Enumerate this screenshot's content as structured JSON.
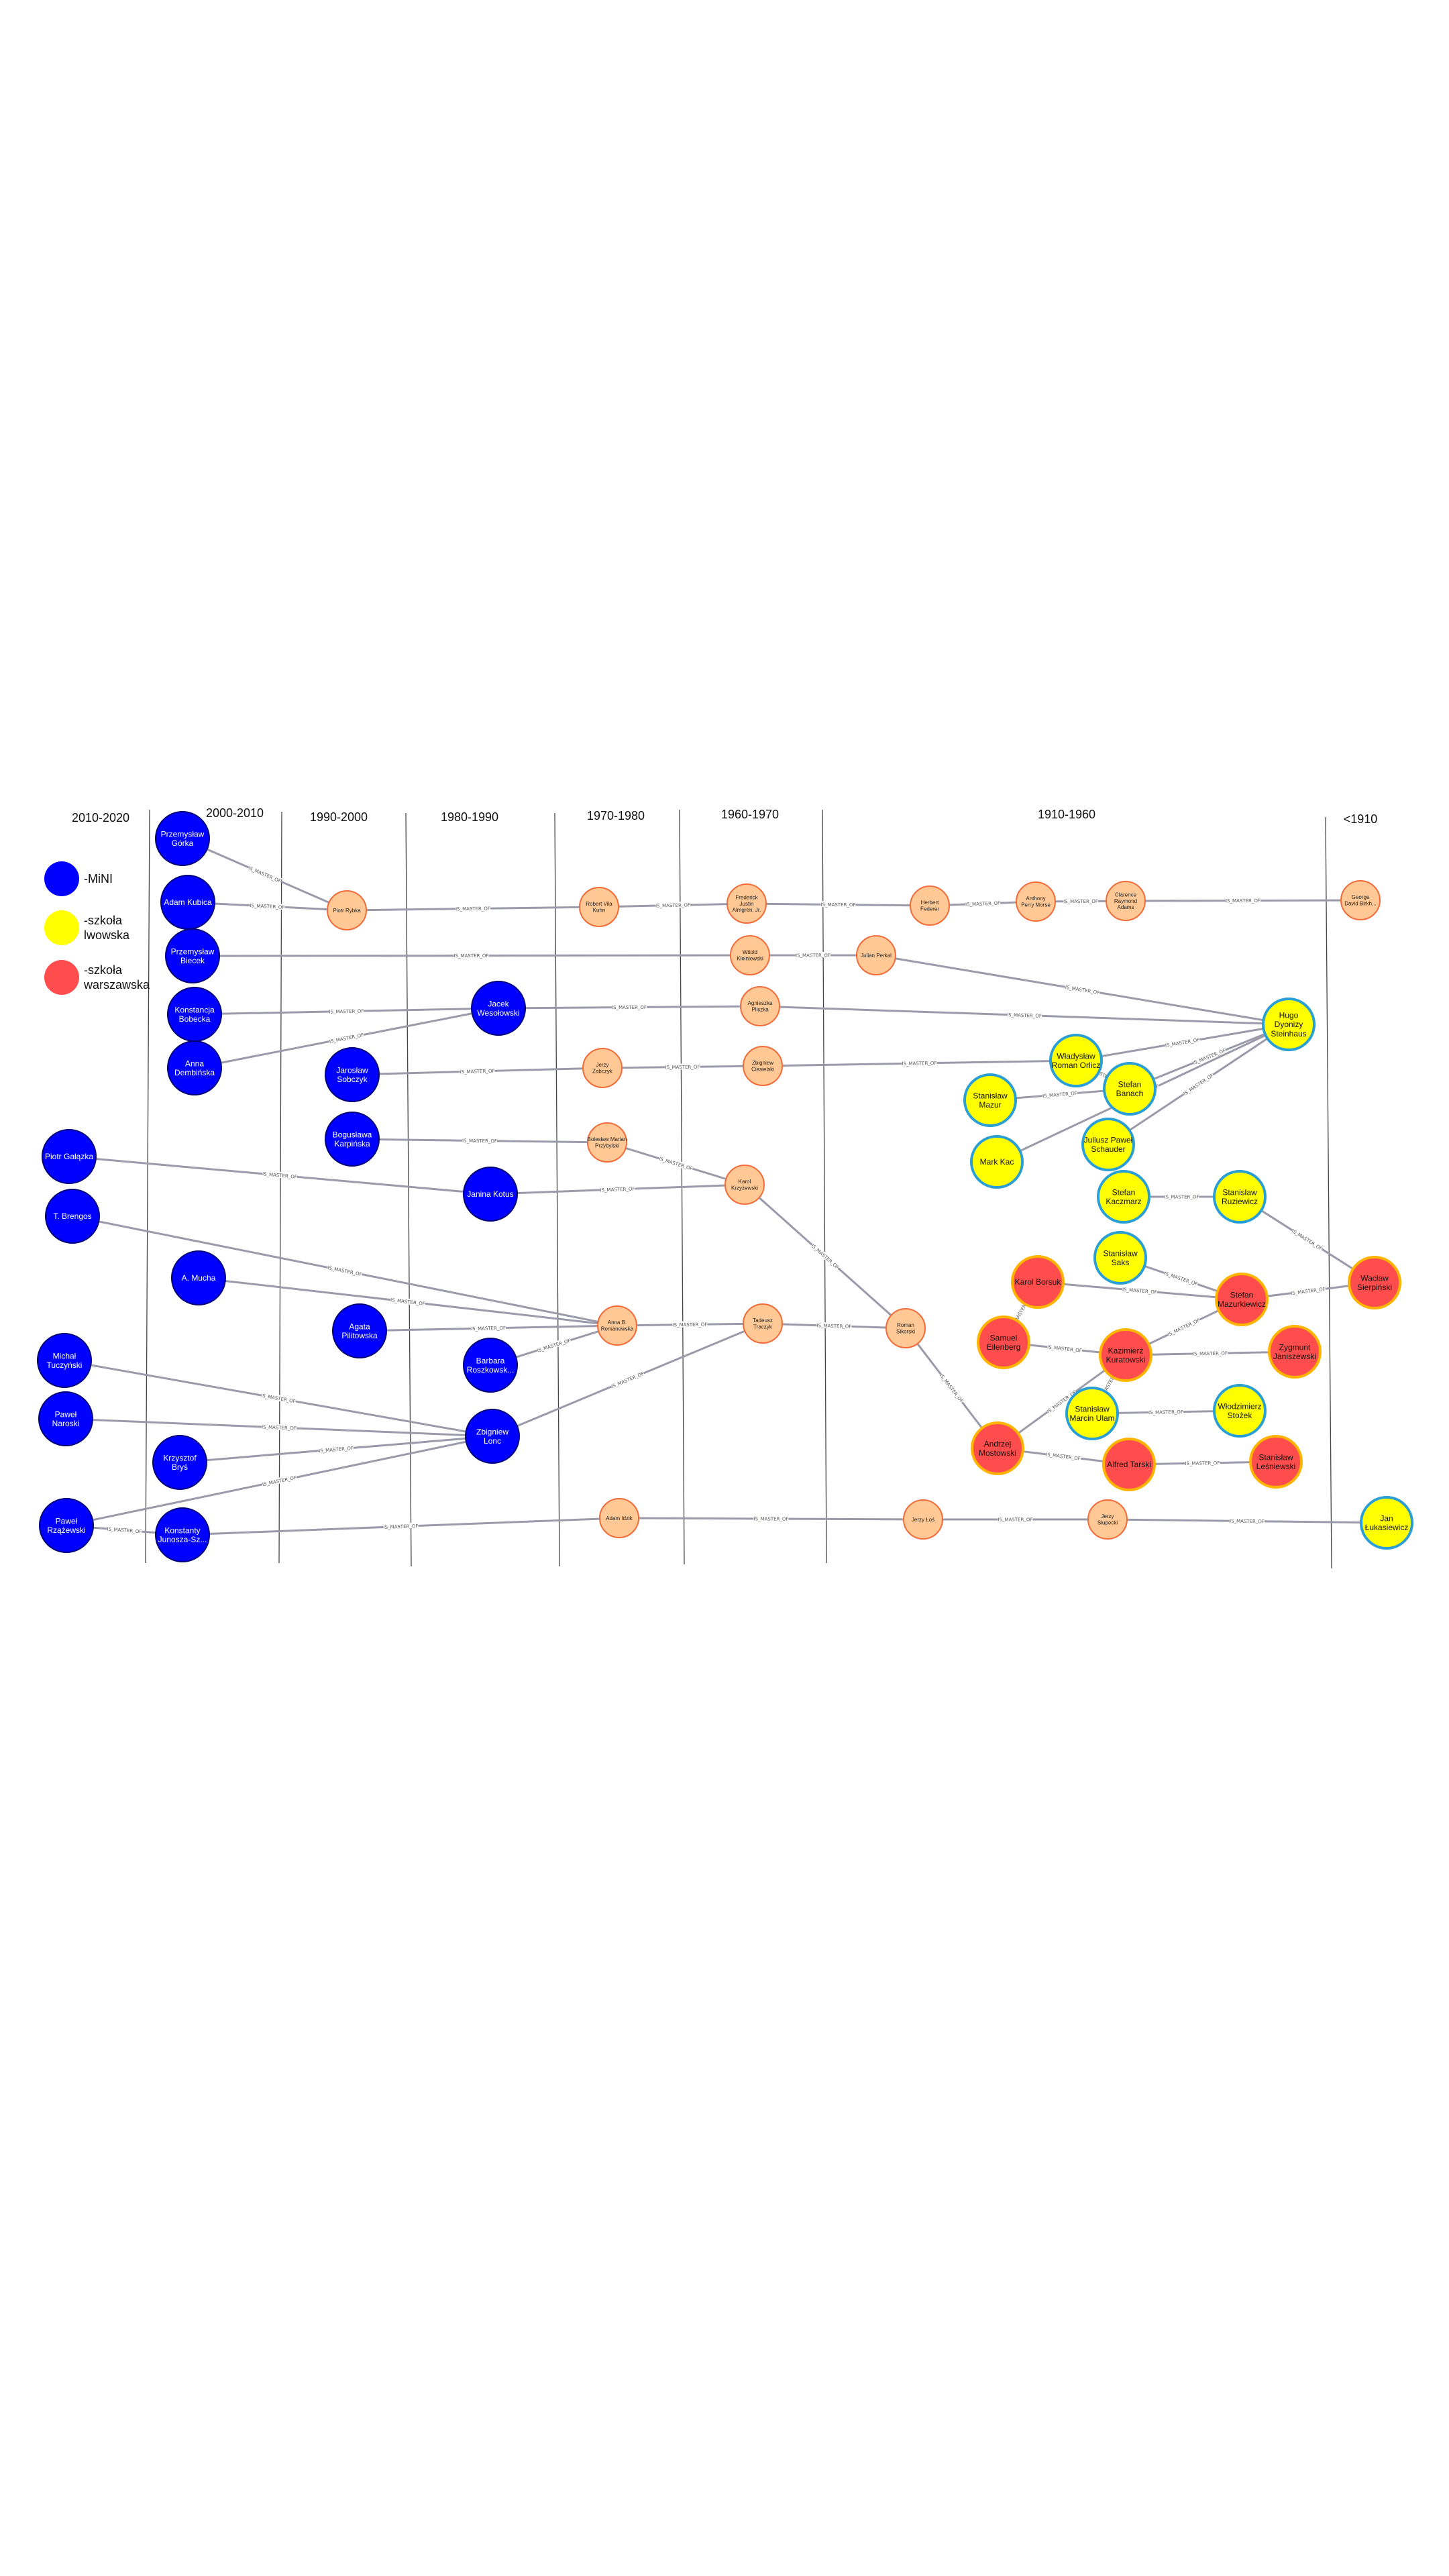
{
  "colors": {
    "mini_fill": "#0000ff",
    "mini_stroke": "#00007a",
    "lwow_fill": "#ffff00",
    "lwow_stroke": "#2a9fd6",
    "warsz_fill": "#ff4d4d",
    "warsz_stroke": "#ffb400",
    "other_fill": "#ffc895",
    "other_stroke": "#f26c3a",
    "edge": "#9a9aaa"
  },
  "eras": [
    "2010-2020",
    "2000-2010",
    "1990-2000",
    "1980-1990",
    "1970-1980",
    "1960-1970",
    "1910-1960",
    "<1910"
  ],
  "legend": [
    {
      "kind": "mini",
      "lines": [
        "-MiNI"
      ]
    },
    {
      "kind": "lwow",
      "lines": [
        "-szkoła",
        "lwowska"
      ]
    },
    {
      "kind": "warsz",
      "lines": [
        "-szkoła",
        "warszawska"
      ]
    }
  ],
  "edge_label": "IS_MASTER_OF",
  "nodes": [
    {
      "id": "gorka",
      "name": [
        "Przemysław",
        "Górka"
      ],
      "kind": "mini"
    },
    {
      "id": "kubica",
      "name": [
        "Adam Kubica"
      ],
      "kind": "mini"
    },
    {
      "id": "biecek",
      "name": [
        "Przemysław",
        "Biecek"
      ],
      "kind": "mini"
    },
    {
      "id": "bobecka",
      "name": [
        "Konstancja",
        "Bobecka"
      ],
      "kind": "mini"
    },
    {
      "id": "dembinska",
      "name": [
        "Anna",
        "Dembińska"
      ],
      "kind": "mini"
    },
    {
      "id": "sobczyk",
      "name": [
        "Jarosław",
        "Sobczyk"
      ],
      "kind": "mini"
    },
    {
      "id": "karpinska",
      "name": [
        "Bogusława",
        "Karpińska"
      ],
      "kind": "mini"
    },
    {
      "id": "galazka",
      "name": [
        "Piotr Gałązka"
      ],
      "kind": "mini"
    },
    {
      "id": "brengos",
      "name": [
        "T. Brengos"
      ],
      "kind": "mini"
    },
    {
      "id": "mucha",
      "name": [
        "A. Mucha"
      ],
      "kind": "mini"
    },
    {
      "id": "pilitowska",
      "name": [
        "Agata",
        "Pilitowska"
      ],
      "kind": "mini"
    },
    {
      "id": "tuczynski",
      "name": [
        "Michał",
        "Tuczyński"
      ],
      "kind": "mini"
    },
    {
      "id": "naroski",
      "name": [
        "Paweł",
        "Naroski"
      ],
      "kind": "mini"
    },
    {
      "id": "brys",
      "name": [
        "Krzysztof",
        "Bryś"
      ],
      "kind": "mini"
    },
    {
      "id": "rzazewski",
      "name": [
        "Paweł",
        "Rzążewski"
      ],
      "kind": "mini"
    },
    {
      "id": "junosza",
      "name": [
        "Konstanty",
        "Junosza-Sz..."
      ],
      "kind": "mini"
    },
    {
      "id": "wesolowski",
      "name": [
        "Jacek",
        "Wesołowski"
      ],
      "kind": "mini"
    },
    {
      "id": "kotus",
      "name": [
        "Janina Kotus"
      ],
      "kind": "mini"
    },
    {
      "id": "roszkowska",
      "name": [
        "Barbara",
        "Roszkowsk..."
      ],
      "kind": "mini"
    },
    {
      "id": "lonc",
      "name": [
        "Zbigniew",
        "Lonc"
      ],
      "kind": "mini"
    },
    {
      "id": "rybka",
      "name": [
        "Piotr Rybka"
      ],
      "kind": "other"
    },
    {
      "id": "kuhn",
      "name": [
        "Robert Vila",
        "Kuhn"
      ],
      "kind": "other"
    },
    {
      "id": "almgren",
      "name": [
        "Frederick",
        "Justin",
        "Almgren, Jr."
      ],
      "kind": "other"
    },
    {
      "id": "federer",
      "name": [
        "Herbert",
        "Federer"
      ],
      "kind": "other"
    },
    {
      "id": "morse",
      "name": [
        "Anthony",
        "Perry Morse"
      ],
      "kind": "other"
    },
    {
      "id": "adams",
      "name": [
        "Clarence",
        "Raymond",
        "Adams"
      ],
      "kind": "other"
    },
    {
      "id": "birkhoff",
      "name": [
        "George",
        "David Birkh..."
      ],
      "kind": "other"
    },
    {
      "id": "kleniewski",
      "name": [
        "Witold",
        "Kleiniewski"
      ],
      "kind": "other"
    },
    {
      "id": "perkal",
      "name": [
        "Julian Perkal"
      ],
      "kind": "other"
    },
    {
      "id": "pliszka",
      "name": [
        "Agnieszka",
        "Pliszka"
      ],
      "kind": "other"
    },
    {
      "id": "zabczyk",
      "name": [
        "Jerzy",
        "Zabczyk"
      ],
      "kind": "other"
    },
    {
      "id": "ciesielski",
      "name": [
        "Zbigniew",
        "Ciesielski"
      ],
      "kind": "other"
    },
    {
      "id": "przybylski",
      "name": [
        "Bolesław Marian",
        "Przybylski"
      ],
      "kind": "other"
    },
    {
      "id": "krzyzewski",
      "name": [
        "Karol",
        "Krzyżewski"
      ],
      "kind": "other"
    },
    {
      "id": "romanowska",
      "name": [
        "Anna B.",
        "Romanowska"
      ],
      "kind": "other"
    },
    {
      "id": "traczyk",
      "name": [
        "Tadeusz",
        "Traczyk"
      ],
      "kind": "other"
    },
    {
      "id": "sikorski",
      "name": [
        "Roman",
        "Sikorski"
      ],
      "kind": "other"
    },
    {
      "id": "idzik",
      "name": [
        "Adam Idzik"
      ],
      "kind": "other"
    },
    {
      "id": "los",
      "name": [
        "Jerzy Łoś"
      ],
      "kind": "other"
    },
    {
      "id": "slupecki",
      "name": [
        "Jerzy",
        "Słupecki"
      ],
      "kind": "other"
    },
    {
      "id": "steinhaus",
      "name": [
        "Hugo",
        "Dyonizy",
        "Steinhaus"
      ],
      "kind": "lwow"
    },
    {
      "id": "orlicz",
      "name": [
        "Władysław",
        "Roman Orlicz"
      ],
      "kind": "lwow"
    },
    {
      "id": "mazur",
      "name": [
        "Stanisław",
        "Mazur"
      ],
      "kind": "lwow"
    },
    {
      "id": "banach",
      "name": [
        "Stefan",
        "Banach"
      ],
      "kind": "lwow"
    },
    {
      "id": "schauder",
      "name": [
        "Juliusz Paweł",
        "Schauder"
      ],
      "kind": "lwow"
    },
    {
      "id": "kac",
      "name": [
        "Mark Kac"
      ],
      "kind": "lwow"
    },
    {
      "id": "kaczmarz",
      "name": [
        "Stefan",
        "Kaczmarz"
      ],
      "kind": "lwow"
    },
    {
      "id": "ruziewicz",
      "name": [
        "Stanisław",
        "Ruziewicz"
      ],
      "kind": "lwow"
    },
    {
      "id": "saks",
      "name": [
        "Stanisław",
        "Saks"
      ],
      "kind": "lwow"
    },
    {
      "id": "ulam",
      "name": [
        "Stanisław",
        "Marcin Ulam"
      ],
      "kind": "lwow"
    },
    {
      "id": "stozek",
      "name": [
        "Włodzimierz",
        "Stożek"
      ],
      "kind": "lwow"
    },
    {
      "id": "lukasiewicz",
      "name": [
        "Jan",
        "Łukasiewicz"
      ],
      "kind": "lwow"
    },
    {
      "id": "borsuk",
      "name": [
        "Karol Borsuk"
      ],
      "kind": "warsz"
    },
    {
      "id": "mazurkiewicz",
      "name": [
        "Stefan",
        "Mazurkiewicz"
      ],
      "kind": "warsz"
    },
    {
      "id": "sierpinski",
      "name": [
        "Wacław",
        "Sierpiński"
      ],
      "kind": "warsz"
    },
    {
      "id": "eilenberg",
      "name": [
        "Samuel",
        "Eilenberg"
      ],
      "kind": "warsz"
    },
    {
      "id": "kuratowski",
      "name": [
        "Kazimierz",
        "Kuratowski"
      ],
      "kind": "warsz"
    },
    {
      "id": "janiszewski",
      "name": [
        "Zygmunt",
        "Janiszewski"
      ],
      "kind": "warsz"
    },
    {
      "id": "mostowski",
      "name": [
        "Andrzej",
        "Mostowski"
      ],
      "kind": "warsz"
    },
    {
      "id": "tarski",
      "name": [
        "Alfred Tarski"
      ],
      "kind": "warsz"
    },
    {
      "id": "lesniewski",
      "name": [
        "Stanisław",
        "Leśniewski"
      ],
      "kind": "warsz"
    }
  ],
  "edges": [
    [
      "gorka",
      "rybka"
    ],
    [
      "kubica",
      "rybka"
    ],
    [
      "rybka",
      "kuhn"
    ],
    [
      "kuhn",
      "almgren"
    ],
    [
      "almgren",
      "federer"
    ],
    [
      "federer",
      "morse"
    ],
    [
      "morse",
      "adams"
    ],
    [
      "adams",
      "birkhoff"
    ],
    [
      "biecek",
      "kleniewski"
    ],
    [
      "kleniewski",
      "perkal"
    ],
    [
      "perkal",
      "steinhaus"
    ],
    [
      "bobecka",
      "wesolowski"
    ],
    [
      "dembinska",
      "wesolowski"
    ],
    [
      "wesolowski",
      "pliszka"
    ],
    [
      "pliszka",
      "steinhaus"
    ],
    [
      "sobczyk",
      "zabczyk"
    ],
    [
      "zabczyk",
      "ciesielski"
    ],
    [
      "ciesielski",
      "orlicz"
    ],
    [
      "orlicz",
      "steinhaus"
    ],
    [
      "orlicz",
      "banach"
    ],
    [
      "mazur",
      "banach"
    ],
    [
      "banach",
      "steinhaus"
    ],
    [
      "schauder",
      "steinhaus"
    ],
    [
      "kac",
      "steinhaus"
    ],
    [
      "karpinska",
      "przybylski"
    ],
    [
      "przybylski",
      "krzyzewski"
    ],
    [
      "galazka",
      "kotus"
    ],
    [
      "kotus",
      "krzyzewski"
    ],
    [
      "krzyzewski",
      "sikorski"
    ],
    [
      "brengos",
      "romanowska"
    ],
    [
      "mucha",
      "romanowska"
    ],
    [
      "pilitowska",
      "romanowska"
    ],
    [
      "roszkowska",
      "romanowska"
    ],
    [
      "romanowska",
      "traczyk"
    ],
    [
      "traczyk",
      "sikorski"
    ],
    [
      "lonc",
      "traczyk"
    ],
    [
      "tuczynski",
      "lonc"
    ],
    [
      "naroski",
      "lonc"
    ],
    [
      "brys",
      "lonc"
    ],
    [
      "rzazewski",
      "lonc"
    ],
    [
      "rzazewski",
      "junosza"
    ],
    [
      "junosza",
      "idzik"
    ],
    [
      "idzik",
      "los"
    ],
    [
      "los",
      "slupecki"
    ],
    [
      "slupecki",
      "lukasiewicz"
    ],
    [
      "sikorski",
      "mostowski"
    ],
    [
      "kaczmarz",
      "ruziewicz"
    ],
    [
      "ruziewicz",
      "sierpinski"
    ],
    [
      "saks",
      "mazurkiewicz"
    ],
    [
      "borsuk",
      "mazurkiewicz"
    ],
    [
      "mazurkiewicz",
      "sierpinski"
    ],
    [
      "eilenberg",
      "kuratowski"
    ],
    [
      "eilenberg",
      "borsuk"
    ],
    [
      "kuratowski",
      "janiszewski"
    ],
    [
      "kuratowski",
      "mazurkiewicz"
    ],
    [
      "mostowski",
      "kuratowski"
    ],
    [
      "mostowski",
      "tarski"
    ],
    [
      "tarski",
      "lesniewski"
    ],
    [
      "ulam",
      "kuratowski"
    ],
    [
      "ulam",
      "stozek"
    ]
  ]
}
